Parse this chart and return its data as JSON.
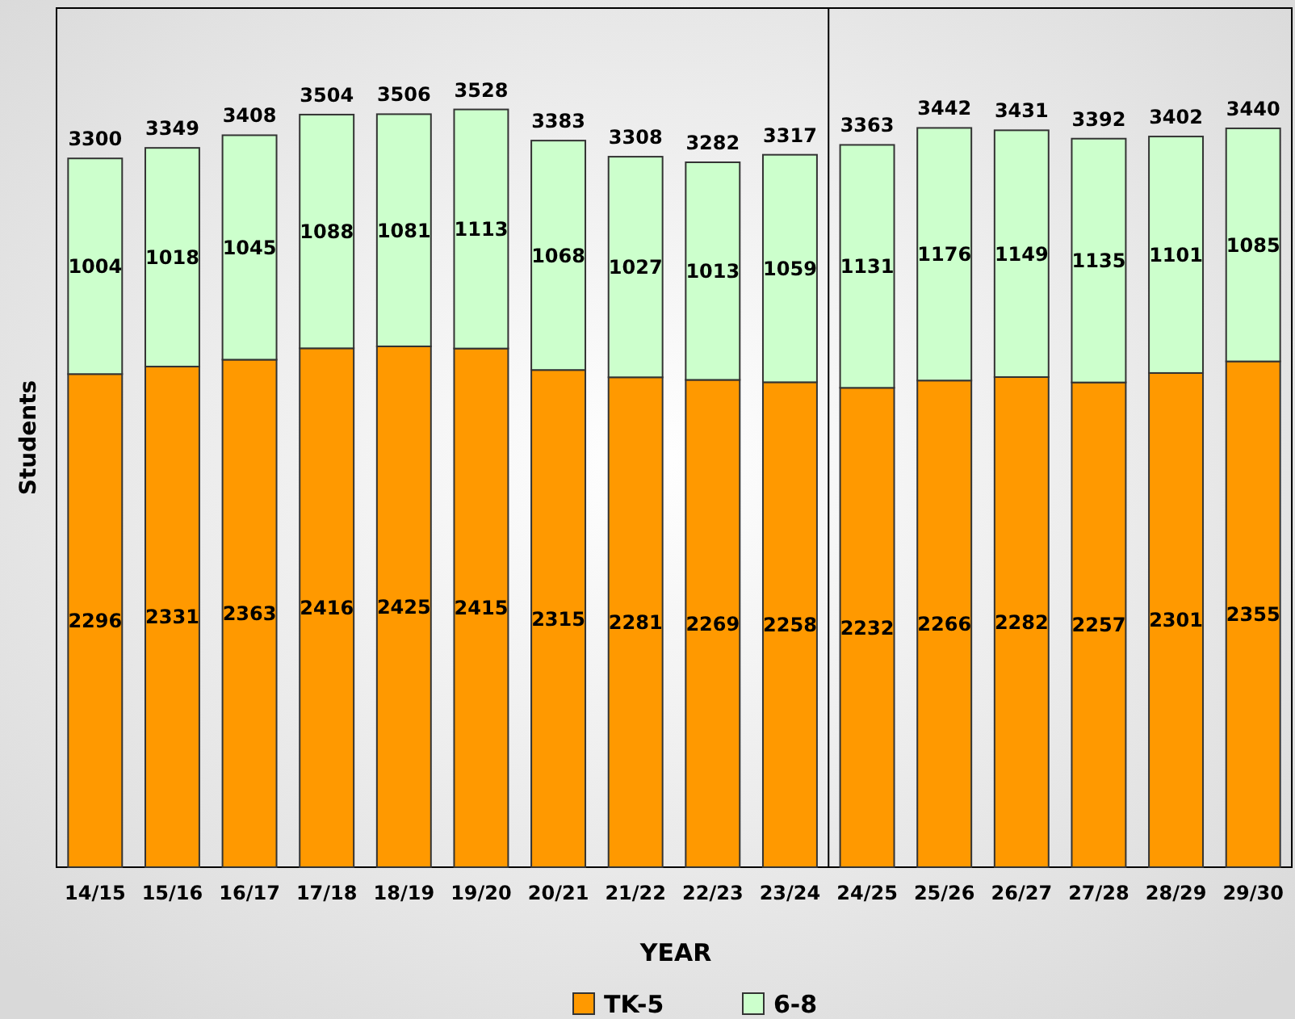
{
  "chart_data": {
    "type": "bar",
    "stacked": true,
    "xlabel": "YEAR",
    "ylabel": "Students",
    "categories": [
      "14/15",
      "15/16",
      "16/17",
      "17/18",
      "18/19",
      "19/20",
      "20/21",
      "21/22",
      "22/23",
      "23/24",
      "24/25",
      "25/26",
      "26/27",
      "27/28",
      "28/29",
      "29/30"
    ],
    "series": [
      {
        "name": "TK-5",
        "color": "#ff9900",
        "values": [
          2296,
          2331,
          2363,
          2416,
          2425,
          2415,
          2315,
          2281,
          2269,
          2258,
          2232,
          2266,
          2282,
          2257,
          2301,
          2355
        ]
      },
      {
        "name": "6-8",
        "color": "#ccffcc",
        "values": [
          1004,
          1018,
          1045,
          1088,
          1081,
          1113,
          1068,
          1027,
          1013,
          1059,
          1131,
          1176,
          1149,
          1135,
          1101,
          1085
        ]
      }
    ],
    "totals": [
      "3300",
      "3349",
      "3408",
      "3504",
      "3506",
      "3528",
      "3383",
      "3308",
      "3282",
      "3317",
      "3363",
      "3442",
      "3431",
      "3392",
      "3402",
      "3440"
    ],
    "ylim": [
      0,
      4000
    ],
    "data_labels": true,
    "tick_labels": "x",
    "grid": false,
    "legend": "bottom"
  }
}
